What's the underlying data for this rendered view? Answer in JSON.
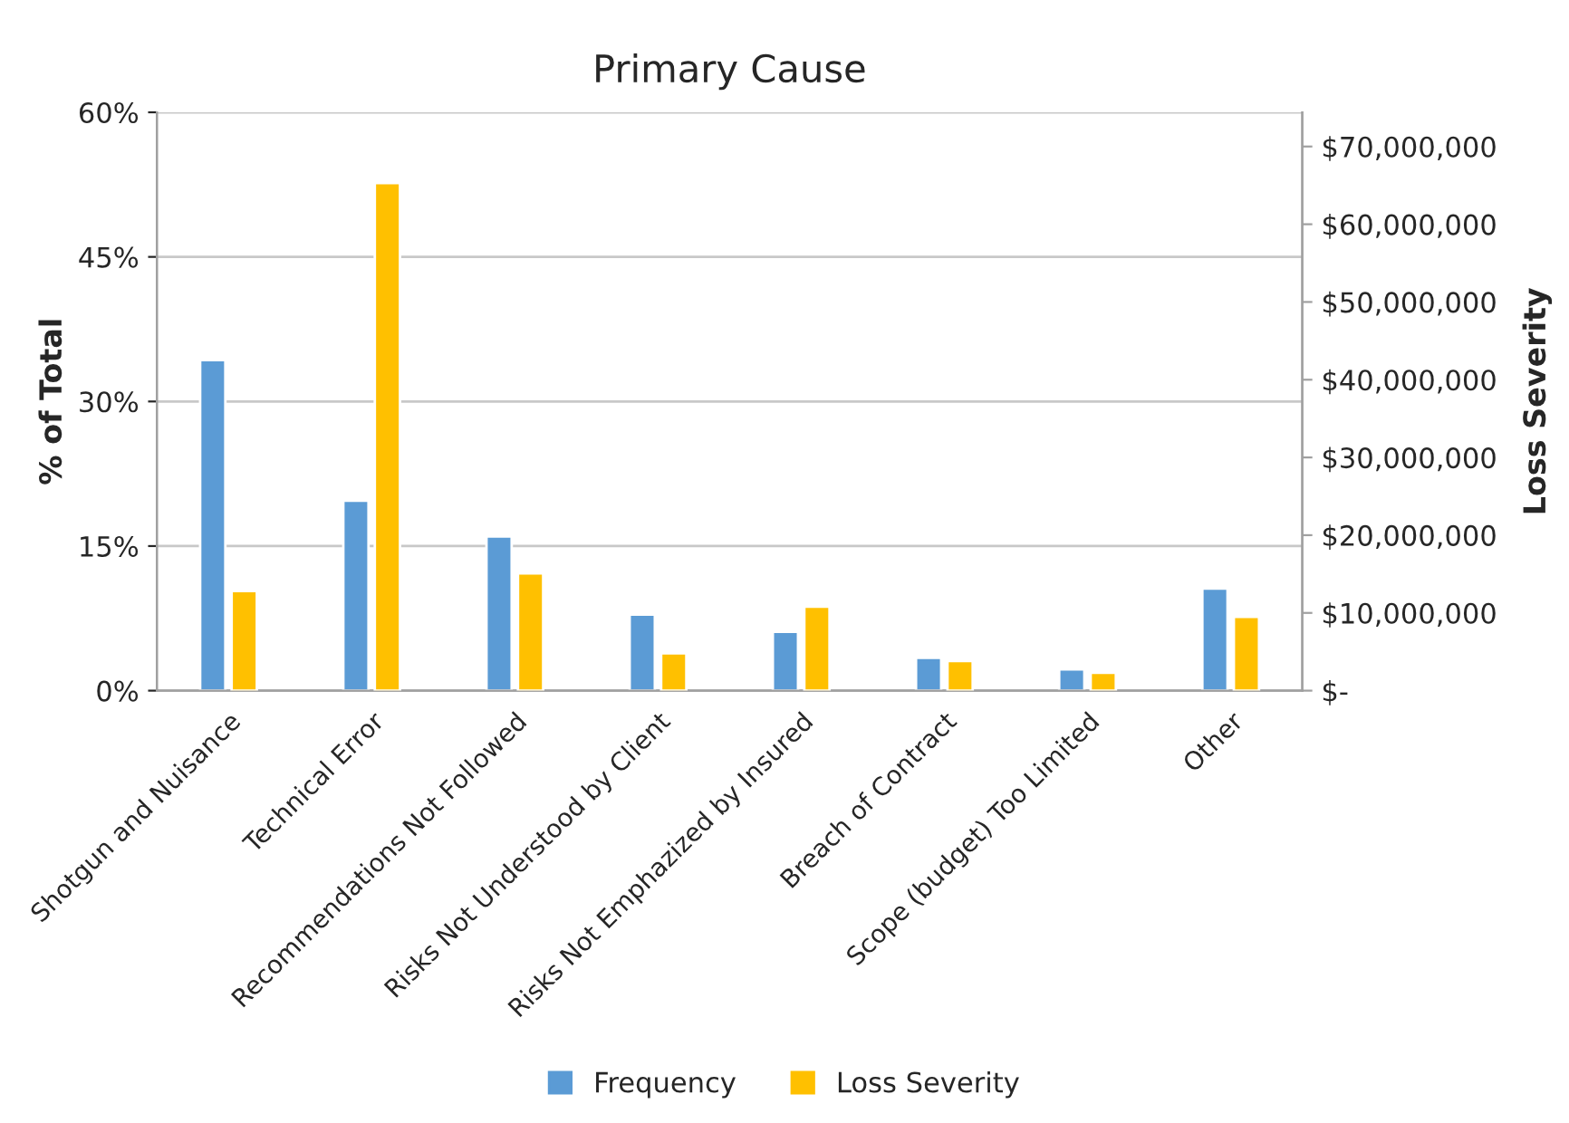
{
  "chart_data": {
    "type": "bar",
    "title": "Primary Cause",
    "ylabel": "% of Total",
    "y2label": "Loss Severity",
    "categories": [
      "Shotgun and Nuisance",
      "Technical Error",
      "Recommendations Not Followed",
      "Risks Not Understood by Client",
      "Risks Not Emphazized by Insured",
      "Breach of Contract",
      "Scope (budget) Too Limited",
      "Other"
    ],
    "series": [
      {
        "name": "Frequency",
        "color": "#5b9bd5",
        "values": [
          34.3,
          19.7,
          16.0,
          7.9,
          6.1,
          3.4,
          2.2,
          10.6
        ]
      },
      {
        "name": "Loss Severity",
        "color": "#ffc000",
        "axis": "y2",
        "values": [
          12800000,
          65300000,
          15100000,
          4800000,
          10800000,
          3800000,
          2300000,
          9500000
        ]
      }
    ],
    "ylim": [
      0,
      60
    ],
    "yticks": [
      {
        "value": 0,
        "label": "0%"
      },
      {
        "value": 15,
        "label": "15%"
      },
      {
        "value": 30,
        "label": "30%"
      },
      {
        "value": 45,
        "label": "45%"
      },
      {
        "value": 60,
        "label": "60%"
      }
    ],
    "y2lim": [
      0,
      74400000
    ],
    "y2ticks": [
      {
        "value": 0,
        "label": "$-"
      },
      {
        "value": 10000000,
        "label": "$10,000,000"
      },
      {
        "value": 20000000,
        "label": "$20,000,000"
      },
      {
        "value": 30000000,
        "label": "$30,000,000"
      },
      {
        "value": 40000000,
        "label": "$40,000,000"
      },
      {
        "value": 50000000,
        "label": "$50,000,000"
      },
      {
        "value": 60000000,
        "label": "$60,000,000"
      },
      {
        "value": 70000000,
        "label": "$70,000,000"
      }
    ],
    "grid": "y",
    "legend": "bottom"
  }
}
